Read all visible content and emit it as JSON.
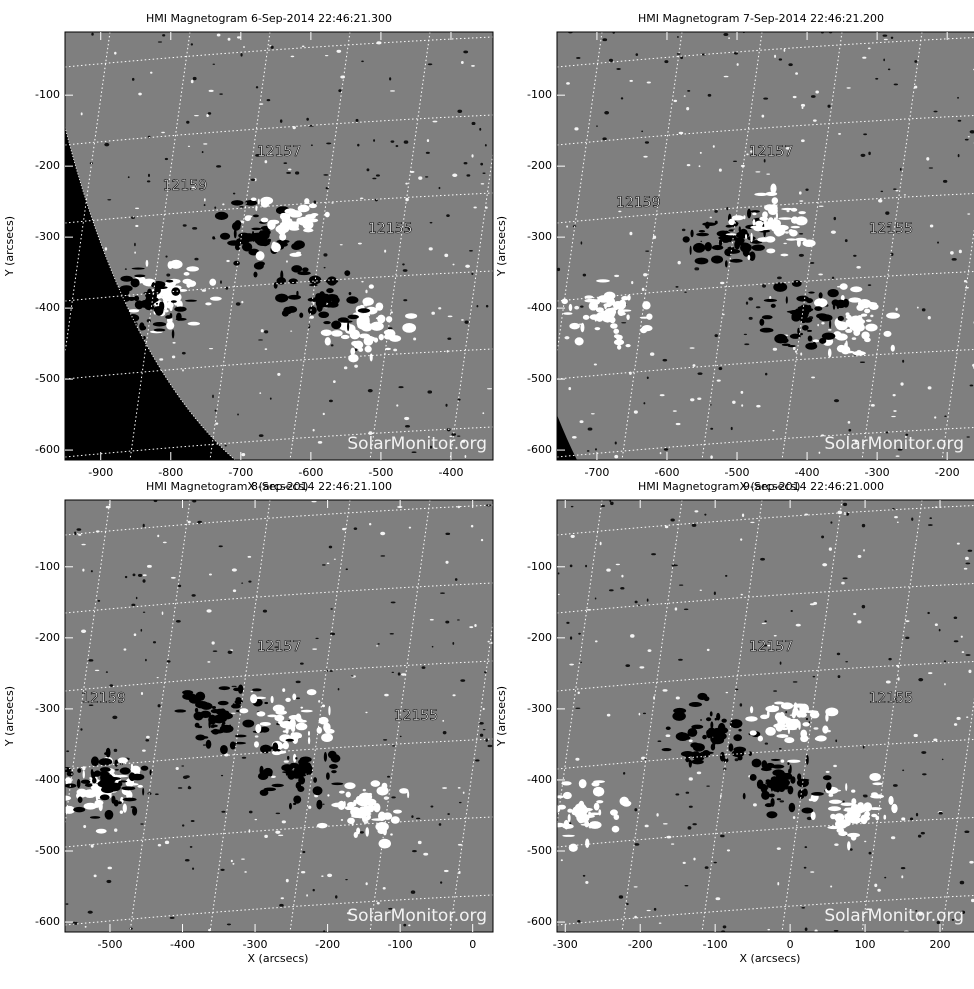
{
  "panels": [
    {
      "title": "HMI Magnetogram   6-Sep-2014 22:46:21.300",
      "x_label": "X (arcsecs)",
      "y_label": "Y (arcsecs)",
      "xlim": [
        -951,
        -340
      ],
      "ylim": [
        -614,
        -11
      ],
      "xticks": [
        -900,
        -800,
        -700,
        -600,
        -500,
        -400
      ],
      "yticks": [
        -100,
        -200,
        -300,
        -400,
        -500,
        -600
      ],
      "regions": [
        "12157",
        "12159",
        "12155"
      ],
      "watermark": "SolarMonitor.org"
    },
    {
      "title": "HMI Magnetogram   7-Sep-2014 22:46:21.200",
      "x_label": "X (arcsecs)",
      "y_label": "Y (arcsecs)",
      "xlim": [
        -757,
        -146
      ],
      "ylim": [
        -614,
        -11
      ],
      "xticks": [
        -700,
        -600,
        -500,
        -400,
        -300,
        -200
      ],
      "yticks": [
        -100,
        -200,
        -300,
        -400,
        -500,
        -600
      ],
      "regions": [
        "12157",
        "12159",
        "12155"
      ],
      "watermark": "SolarMonitor.org"
    },
    {
      "title": "HMI Magnetogram   8-Sep-2014 22:46:21.100",
      "x_label": "X (arcsecs)",
      "y_label": "Y (arcsecs)",
      "xlim": [
        -562,
        28
      ],
      "ylim": [
        -614,
        -6
      ],
      "xticks": [
        -500,
        -400,
        -300,
        -200,
        -100,
        0
      ],
      "yticks": [
        -100,
        -200,
        -300,
        -400,
        -500,
        -600
      ],
      "regions": [
        "12157",
        "12159",
        "12155"
      ],
      "watermark": "SolarMonitor.org"
    },
    {
      "title": "HMI Magnetogram   9-Sep-2014 22:46:21.000",
      "x_label": "X (arcsecs)",
      "y_label": "Y (arcsecs)",
      "xlim": [
        -311,
        260
      ],
      "ylim": [
        -614,
        -6
      ],
      "xticks": [
        -300,
        -200,
        -100,
        0,
        100,
        200
      ],
      "yticks": [
        -100,
        -200,
        -300,
        -400,
        -500,
        -600
      ],
      "regions": [
        "12157",
        "12155"
      ],
      "watermark": "SolarMonitor.org"
    }
  ]
}
